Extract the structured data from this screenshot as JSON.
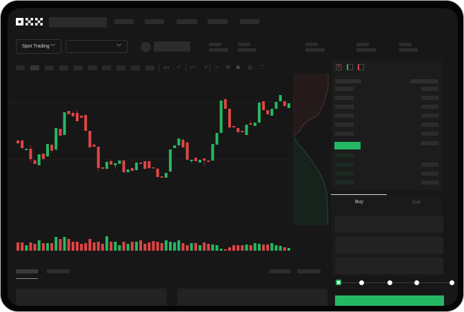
{
  "brand": {
    "logo": "OKX"
  },
  "header": {
    "nav_count": 5
  },
  "trade_bar": {
    "mode_select": "Spot Trading",
    "pair_select": ""
  },
  "order_form": {
    "tabs": [
      {
        "label": "Buy",
        "active": true
      },
      {
        "label": "Sell",
        "active": false
      }
    ],
    "slider_percent": 0,
    "slider_steps": [
      0,
      25,
      50,
      75,
      100
    ]
  },
  "colors": {
    "up": "#25b864",
    "down": "#e04545",
    "background": "#171717",
    "panel": "#1c1c1c"
  },
  "chart_data": {
    "type": "candlestick",
    "candles": [
      [
        97,
        98,
        92,
        93
      ],
      [
        97,
        98,
        85,
        86
      ],
      [
        83,
        85,
        83,
        85
      ],
      [
        85,
        90,
        65,
        70
      ],
      [
        68,
        69,
        63,
        63
      ],
      [
        61,
        77,
        61,
        77
      ],
      [
        78,
        78,
        70,
        70
      ],
      [
        74,
        92,
        73,
        92
      ],
      [
        91,
        91,
        82,
        82
      ],
      [
        84,
        115,
        82,
        115
      ],
      [
        114,
        114,
        104,
        104
      ],
      [
        105,
        138,
        105,
        138
      ],
      [
        140,
        140,
        135,
        135
      ],
      [
        137,
        139,
        132,
        132
      ],
      [
        137,
        142,
        125,
        125
      ],
      [
        133,
        133,
        130,
        130
      ],
      [
        134,
        135,
        111,
        111
      ],
      [
        111,
        111,
        87,
        87
      ],
      [
        91,
        92,
        88,
        88
      ],
      [
        88,
        88,
        52,
        57
      ],
      [
        58,
        58,
        56,
        56
      ],
      [
        56,
        66,
        55,
        66
      ],
      [
        67,
        69,
        62,
        62
      ],
      [
        61,
        64,
        56,
        64
      ],
      [
        63,
        68,
        63,
        68
      ],
      [
        68,
        68,
        50,
        51
      ],
      [
        51,
        55,
        51,
        55
      ],
      [
        57,
        57,
        52,
        53
      ],
      [
        54,
        65,
        54,
        65
      ],
      [
        65,
        65,
        63,
        63
      ],
      [
        67,
        67,
        55,
        56
      ],
      [
        67,
        67,
        56,
        57
      ],
      [
        58,
        58,
        57,
        57
      ],
      [
        56,
        57,
        44,
        44
      ],
      [
        45,
        45,
        43,
        43
      ],
      [
        43,
        50,
        43,
        50
      ],
      [
        52,
        84,
        51,
        84
      ],
      [
        86,
        90,
        86,
        90
      ],
      [
        90,
        100,
        90,
        100
      ],
      [
        98,
        100,
        87,
        87
      ],
      [
        94,
        96,
        69,
        69
      ],
      [
        67,
        69,
        64,
        69
      ],
      [
        72,
        72,
        67,
        67
      ],
      [
        65,
        69,
        65,
        69
      ],
      [
        71,
        71,
        60,
        68
      ],
      [
        68,
        68,
        66,
        66
      ],
      [
        68,
        92,
        67,
        92
      ],
      [
        91,
        108,
        91,
        108
      ],
      [
        108,
        155,
        108,
        155
      ],
      [
        157,
        158,
        143,
        143
      ],
      [
        143,
        143,
        114,
        116
      ],
      [
        118,
        118,
        116,
        116
      ],
      [
        115,
        115,
        109,
        109
      ],
      [
        111,
        112,
        109,
        109
      ],
      [
        105,
        120,
        105,
        120
      ],
      [
        122,
        126,
        120,
        120
      ],
      [
        118,
        123,
        118,
        123
      ],
      [
        123,
        152,
        123,
        152
      ],
      [
        154,
        154,
        141,
        141
      ],
      [
        141,
        141,
        135,
        135
      ],
      [
        133,
        143,
        133,
        143
      ],
      [
        143,
        153,
        143,
        153
      ],
      [
        154,
        163,
        154,
        163
      ],
      [
        154,
        154,
        147,
        147
      ],
      [
        144,
        151,
        144,
        151
      ]
    ],
    "volume": [
      12,
      12,
      8,
      12,
      10,
      15,
      11,
      11,
      11,
      20,
      17,
      20,
      17,
      13,
      13,
      10,
      11,
      17,
      12,
      13,
      10,
      21,
      13,
      13,
      8,
      13,
      10,
      13,
      13,
      15,
      10,
      12,
      14,
      13,
      11,
      15,
      13,
      12,
      15,
      11,
      8,
      11,
      11,
      8,
      12,
      10,
      9,
      8,
      3,
      2,
      5,
      8,
      8,
      8,
      9,
      8,
      11,
      10,
      9,
      9,
      11,
      8,
      7,
      5,
      4
    ],
    "depth": {
      "asks": "red",
      "bids": "green"
    }
  }
}
